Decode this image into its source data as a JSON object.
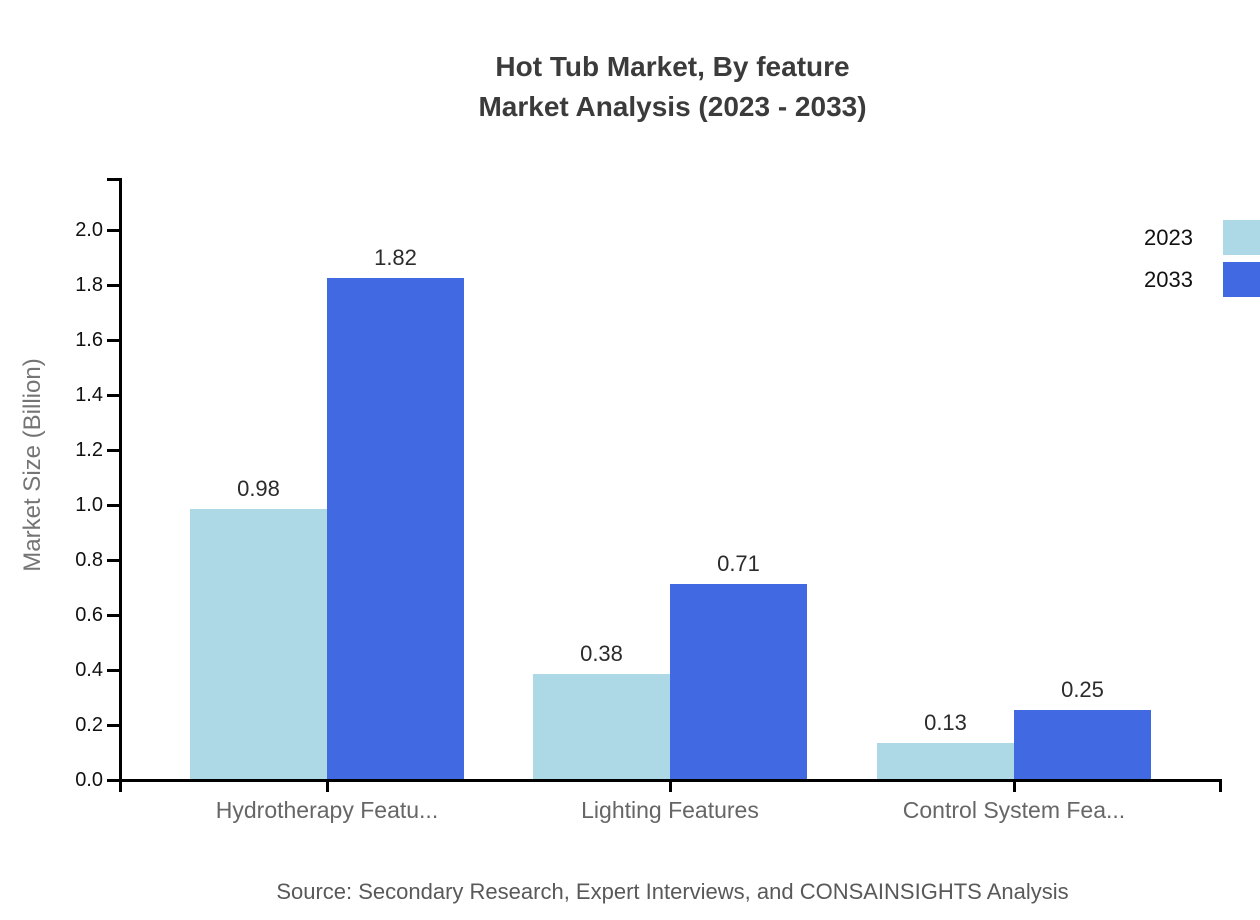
{
  "title": {
    "line1": "Hot Tub Market, By feature",
    "line2": "Market Analysis (2023 - 2033)"
  },
  "source": "Source: Secondary Research, Expert Interviews, and CONSAINSIGHTS Analysis",
  "y_axis_title": "Market Size (Billion)",
  "legend": {
    "items": [
      {
        "label": "2023",
        "color": "#ADD8E6"
      },
      {
        "label": "2033",
        "color": "#4169E1"
      }
    ]
  },
  "chart_data": {
    "type": "bar",
    "title": "Hot Tub Market, By feature Market Analysis (2023 - 2033)",
    "categories": [
      "Hydrotherapy Featu...",
      "Lighting Features",
      "Control System Fea..."
    ],
    "series": [
      {
        "name": "2023",
        "color": "#ADD8E6",
        "values": [
          0.98,
          0.38,
          0.13
        ]
      },
      {
        "name": "2033",
        "color": "#4169E1",
        "values": [
          1.82,
          0.71,
          0.25
        ]
      }
    ],
    "xlabel": "",
    "ylabel": "Market Size (Billion)",
    "ylim": [
      0,
      2.2
    ],
    "yticks": [
      0.0,
      0.2,
      0.4,
      0.6,
      0.8,
      1.0,
      1.2,
      1.4,
      1.6,
      1.8,
      2.0
    ],
    "grid": false,
    "legend_position": "top-right",
    "bar_value_labels": true
  }
}
